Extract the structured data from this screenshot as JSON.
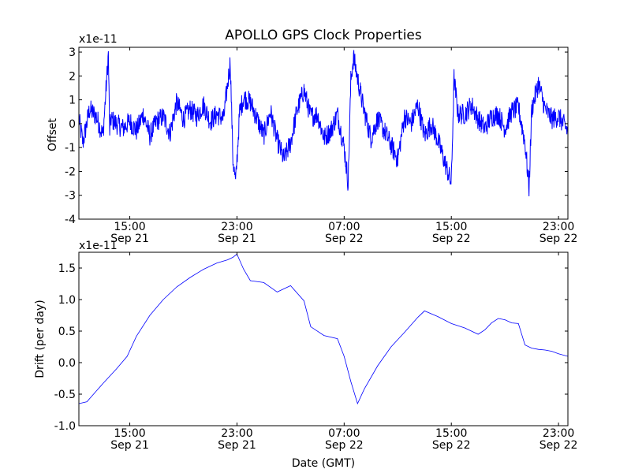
{
  "figure": {
    "title": "APOLLO GPS Clock Properties",
    "xlabel": "Date (GMT)"
  },
  "chart_data": [
    {
      "type": "line",
      "title": "APOLLO GPS Clock Properties",
      "ylabel": "Offset",
      "yscale_label": "x1e-11",
      "ylim": [
        -4,
        3.2
      ],
      "yticks": [
        "-4",
        "-3",
        "-2",
        "-1",
        "0",
        "1",
        "2",
        "3"
      ],
      "x_unit": "hours since Sep 21 00:00 GMT",
      "xlim": [
        11.2,
        47.7
      ],
      "xticks": [
        {
          "time": "15:00",
          "date": "Sep 21"
        },
        {
          "time": "23:00",
          "date": "Sep 21"
        },
        {
          "time": "07:00",
          "date": "Sep 22"
        },
        {
          "time": "15:00",
          "date": "Sep 22"
        },
        {
          "time": "23:00",
          "date": "Sep 22"
        }
      ],
      "line_color": "#0000ff",
      "series": [
        {
          "x": [
            11.2,
            11.5,
            12.0,
            12.5,
            13.0,
            13.4,
            13.5,
            13.6,
            14.0,
            14.5,
            15.0,
            15.5,
            16.0,
            16.5,
            17.0,
            17.5,
            18.0,
            18.5,
            19.0,
            19.5,
            20.0,
            20.5,
            21.0,
            21.5,
            22.0,
            22.5,
            22.7,
            22.9,
            23.2,
            23.5,
            24.0,
            24.5,
            25.0,
            25.5,
            26.0,
            26.5,
            27.0,
            27.5,
            28.0,
            28.5,
            29.0,
            29.5,
            30.0,
            30.5,
            31.0,
            31.3,
            31.5,
            31.7,
            32.0,
            32.5,
            33.0,
            33.5,
            34.0,
            34.5,
            35.0,
            35.5,
            36.0,
            36.5,
            37.0,
            37.5,
            38.0,
            38.5,
            39.0,
            39.2,
            39.5,
            40.0,
            40.5,
            41.0,
            41.5,
            42.0,
            42.5,
            43.0,
            43.5,
            44.0,
            44.5,
            44.8,
            45.0,
            45.5,
            46.0,
            46.5,
            47.0,
            47.7
          ],
          "y": [
            0.2,
            -0.8,
            0.6,
            0.3,
            -0.5,
            2.9,
            -0.3,
            0.2,
            0.0,
            -0.2,
            0.1,
            -0.3,
            0.4,
            -0.5,
            0.1,
            0.3,
            -0.4,
            0.9,
            0.2,
            0.6,
            0.3,
            0.8,
            0.1,
            0.4,
            0.2,
            2.6,
            -1.5,
            -2.5,
            0.5,
            1.1,
            0.9,
            0.2,
            -0.5,
            0.5,
            -0.7,
            -1.5,
            -0.8,
            0.6,
            1.4,
            0.3,
            0.4,
            -0.6,
            -0.3,
            0.4,
            -1.0,
            -2.5,
            1.8,
            2.8,
            1.9,
            0.5,
            -0.6,
            0.2,
            -0.3,
            -0.9,
            -1.5,
            0.3,
            0.0,
            0.8,
            -0.5,
            0.0,
            -0.7,
            -1.6,
            -2.5,
            1.9,
            0.4,
            0.4,
            0.8,
            0.2,
            -0.2,
            0.3,
            0.4,
            -0.2,
            0.5,
            0.7,
            -0.8,
            -2.7,
            0.6,
            1.7,
            0.6,
            0.2,
            0.3,
            -0.3
          ]
        }
      ]
    },
    {
      "type": "line",
      "ylabel": "Drift (per day)",
      "yscale_label": "x1e-11",
      "ylim": [
        -1.0,
        1.75
      ],
      "yticks": [
        "-1.0",
        "-0.5",
        "0.0",
        "0.5",
        "1.0",
        "1.5"
      ],
      "x_unit": "hours since Sep 21 00:00 GMT",
      "xlim": [
        11.2,
        47.7
      ],
      "xticks": [
        {
          "time": "15:00",
          "date": "Sep 21"
        },
        {
          "time": "23:00",
          "date": "Sep 21"
        },
        {
          "time": "07:00",
          "date": "Sep 22"
        },
        {
          "time": "15:00",
          "date": "Sep 22"
        },
        {
          "time": "23:00",
          "date": "Sep 22"
        }
      ],
      "line_color": "#0000ff",
      "series": [
        {
          "x": [
            11.2,
            11.8,
            12.5,
            13.0,
            14.0,
            14.8,
            15.5,
            16.5,
            17.5,
            18.5,
            19.5,
            20.5,
            21.5,
            22.3,
            22.7,
            23.0,
            23.5,
            24.0,
            25.0,
            26.0,
            27.0,
            28.0,
            28.5,
            29.5,
            30.5,
            31.0,
            31.5,
            32.0,
            32.5,
            33.5,
            34.5,
            35.5,
            36.0,
            36.5,
            37.0,
            38.0,
            39.0,
            40.0,
            40.5,
            41.0,
            41.5,
            42.0,
            42.5,
            43.0,
            43.5,
            44.0,
            44.5,
            45.0,
            45.5,
            46.0,
            46.5,
            47.0,
            47.7
          ],
          "y": [
            -0.65,
            -0.62,
            -0.45,
            -0.33,
            -0.1,
            0.1,
            0.42,
            0.75,
            1.0,
            1.2,
            1.35,
            1.48,
            1.58,
            1.63,
            1.67,
            1.72,
            1.48,
            1.3,
            1.27,
            1.12,
            1.22,
            0.98,
            0.57,
            0.43,
            0.38,
            0.1,
            -0.3,
            -0.65,
            -0.42,
            -0.05,
            0.25,
            0.48,
            0.6,
            0.72,
            0.82,
            0.73,
            0.62,
            0.55,
            0.5,
            0.45,
            0.52,
            0.63,
            0.7,
            0.68,
            0.63,
            0.62,
            0.28,
            0.23,
            0.21,
            0.2,
            0.18,
            0.14,
            0.1
          ]
        }
      ]
    }
  ]
}
